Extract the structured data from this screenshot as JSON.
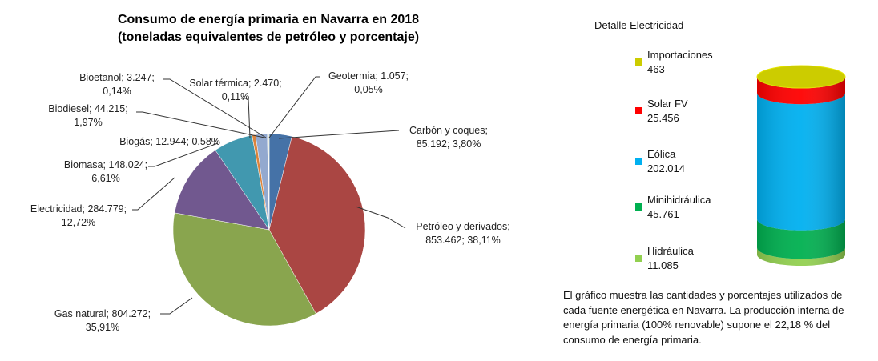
{
  "chart_data": [
    {
      "type": "pie",
      "title_line1": "Consumo de energía primaria en Navarra en 2018",
      "title_line2": "(toneladas equivalentes de petróleo y porcentaje)",
      "slices": [
        {
          "name": "Carbón y coques",
          "value": 85192,
          "value_label": "85.192",
          "percent": "3,80%",
          "color": "#4572A7"
        },
        {
          "name": "Petróleo y derivados",
          "value": 853462,
          "value_label": "853.462",
          "percent": "38,11%",
          "color": "#AA4643"
        },
        {
          "name": "Gas natural",
          "value": 804272,
          "value_label": "804.272",
          "percent": "35,91%",
          "color": "#89A54E"
        },
        {
          "name": "Electricidad",
          "value": 284779,
          "value_label": "284.779",
          "percent": "12,72%",
          "color": "#71588F"
        },
        {
          "name": "Biomasa",
          "value": 148024,
          "value_label": "148.024",
          "percent": "6,61%",
          "color": "#4198AF"
        },
        {
          "name": "Biogás",
          "value": 12944,
          "value_label": "12.944",
          "percent": "0,58%",
          "color": "#DB843D"
        },
        {
          "name": "Biodiesel",
          "value": 44215,
          "value_label": "44.215",
          "percent": "1,97%",
          "color": "#93A9CF"
        },
        {
          "name": "Bioetanol",
          "value": 3247,
          "value_label": "3.247",
          "percent": "0,14%",
          "color": "#D19392"
        },
        {
          "name": "Solar térmica",
          "value": 2470,
          "value_label": "2.470",
          "percent": "0,11%",
          "color": "#B9CD96"
        },
        {
          "name": "Geotermia",
          "value": 1057,
          "value_label": "1.057",
          "percent": "0,05%",
          "color": "#A99BBD"
        }
      ]
    },
    {
      "type": "stacked-cylinder",
      "title": "Detalle Electricidad",
      "series": [
        {
          "name": "Importaciones",
          "value": 463,
          "value_label": "463",
          "color": "#CCCC00"
        },
        {
          "name": "Solar FV",
          "value": 25456,
          "value_label": "25.456",
          "color": "#FF0000"
        },
        {
          "name": "Eólica",
          "value": 202014,
          "value_label": "202.014",
          "color": "#00B0F0"
        },
        {
          "name": "Minihidráulica",
          "value": 45761,
          "value_label": "45.761",
          "color": "#00B050"
        },
        {
          "name": "Hidráulica",
          "value": 11085,
          "value_label": "11.085",
          "color": "#92D050"
        }
      ]
    }
  ],
  "note": "El gráfico   muestra las cantidades y porcentajes utilizados de cada fuente energética en Navarra. La producción interna de energía primaria (100% renovable) supone el 22,18 % del consumo de energía primaria."
}
